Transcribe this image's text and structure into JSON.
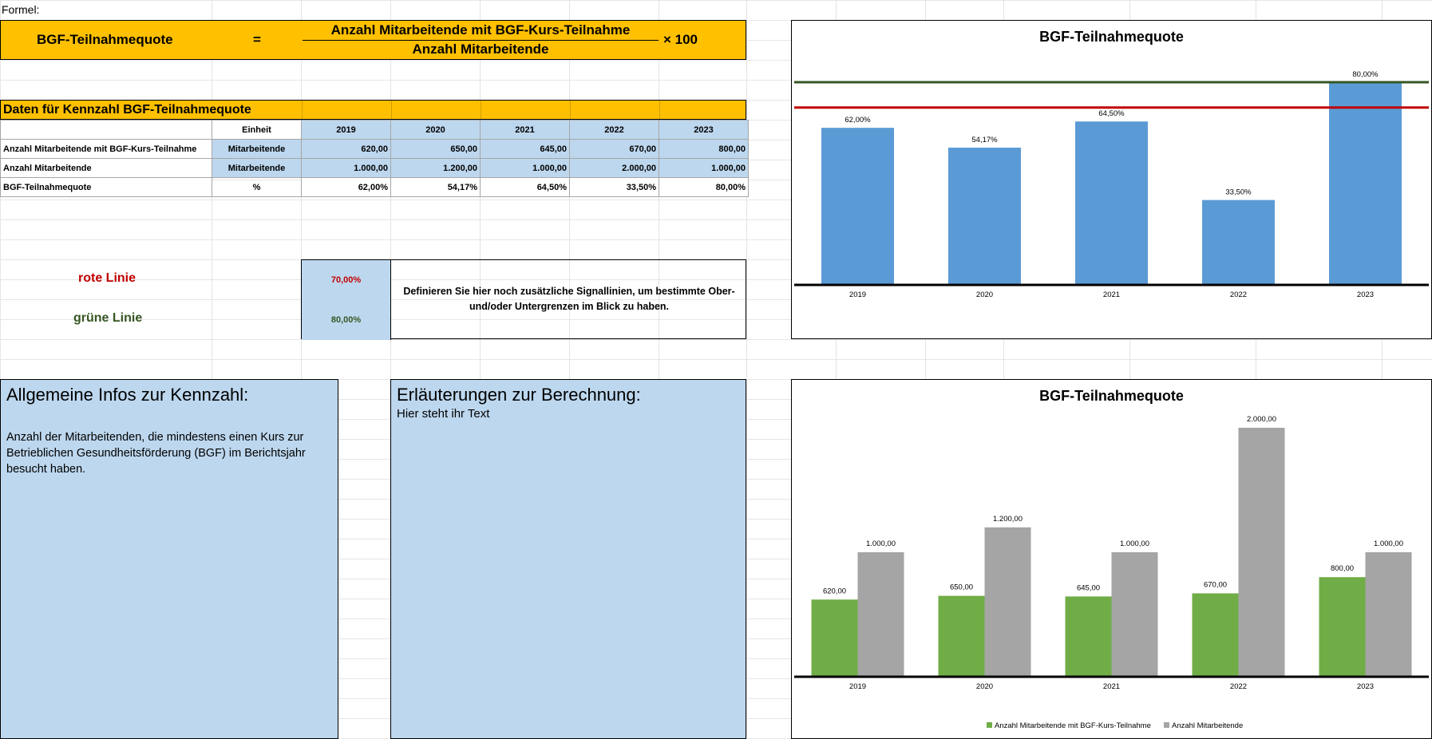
{
  "formula": {
    "label": "Formel:",
    "name": "BGF-Teilnahmequote",
    "equals": "=",
    "numerator": "Anzahl Mitarbeitende mit BGF-Kurs-Teilnahme",
    "denominator": "Anzahl Mitarbeitende",
    "multiplier": "× 100"
  },
  "data_section": {
    "title": "Daten für Kennzahl BGF-Teilnahmequote",
    "unit_header": "Einheit",
    "years": [
      "2019",
      "2020",
      "2021",
      "2022",
      "2023"
    ],
    "rows": [
      {
        "label": "Anzahl Mitarbeitende mit BGF-Kurs-Teilnahme",
        "unit": "Mitarbeitende",
        "values": [
          "620,00",
          "650,00",
          "645,00",
          "670,00",
          "800,00"
        ]
      },
      {
        "label": "Anzahl Mitarbeitende",
        "unit": "Mitarbeitende",
        "values": [
          "1.000,00",
          "1.200,00",
          "1.000,00",
          "2.000,00",
          "1.000,00"
        ]
      },
      {
        "label": "BGF-Teilnahmequote",
        "unit": "%",
        "values": [
          "62,00%",
          "54,17%",
          "64,50%",
          "33,50%",
          "80,00%"
        ]
      }
    ]
  },
  "signal_lines": {
    "red_label": "rote Linie",
    "red_value": "70,00%",
    "green_label": "grüne Linie",
    "green_value": "80,00%",
    "hint": "Definieren Sie hier noch zusätzliche Signallinien, um bestimmte Ober- und/oder Untergrenzen im Blick zu haben.",
    "red_color": "#c00000",
    "green_color": "#375623"
  },
  "info": {
    "title": "Allgemeine Infos zur Kennzahl:",
    "text": "Anzahl der Mitarbeitenden, die mindestens einen Kurs zur Betrieblichen Gesundheitsförderung (BGF) im Berichtsjahr besucht haben."
  },
  "explanation": {
    "title": "Erläuterungen zur Berechnung:",
    "text": "Hier steht ihr Text"
  },
  "chart_data": [
    {
      "type": "bar",
      "title": "BGF-Teilnahmequote",
      "categories": [
        "2019",
        "2020",
        "2021",
        "2022",
        "2023"
      ],
      "values": [
        62.0,
        54.17,
        64.5,
        33.5,
        80.0
      ],
      "labels": [
        "62,00%",
        "54,17%",
        "64,50%",
        "33,50%",
        "80,00%"
      ],
      "reference_lines": [
        {
          "value": 70.0,
          "color": "#c00000"
        },
        {
          "value": 80.0,
          "color": "#375623"
        }
      ],
      "ylim": [
        0,
        80
      ],
      "bar_color": "#5b9bd5"
    },
    {
      "type": "bar",
      "title": "BGF-Teilnahmequote",
      "categories": [
        "2019",
        "2020",
        "2021",
        "2022",
        "2023"
      ],
      "series": [
        {
          "name": "Anzahl Mitarbeitende mit BGF-Kurs-Teilnahme",
          "values": [
            620,
            650,
            645,
            670,
            800
          ],
          "labels": [
            "620,00",
            "650,00",
            "645,00",
            "670,00",
            "800,00"
          ],
          "color": "#70ad47"
        },
        {
          "name": "Anzahl Mitarbeitende",
          "values": [
            1000,
            1200,
            1000,
            2000,
            1000
          ],
          "labels": [
            "1.000,00",
            "1.200,00",
            "1.000,00",
            "2.000,00",
            "1.000,00"
          ],
          "color": "#a5a5a5"
        }
      ],
      "ylim": [
        0,
        2000
      ],
      "legend": "bottom"
    }
  ]
}
